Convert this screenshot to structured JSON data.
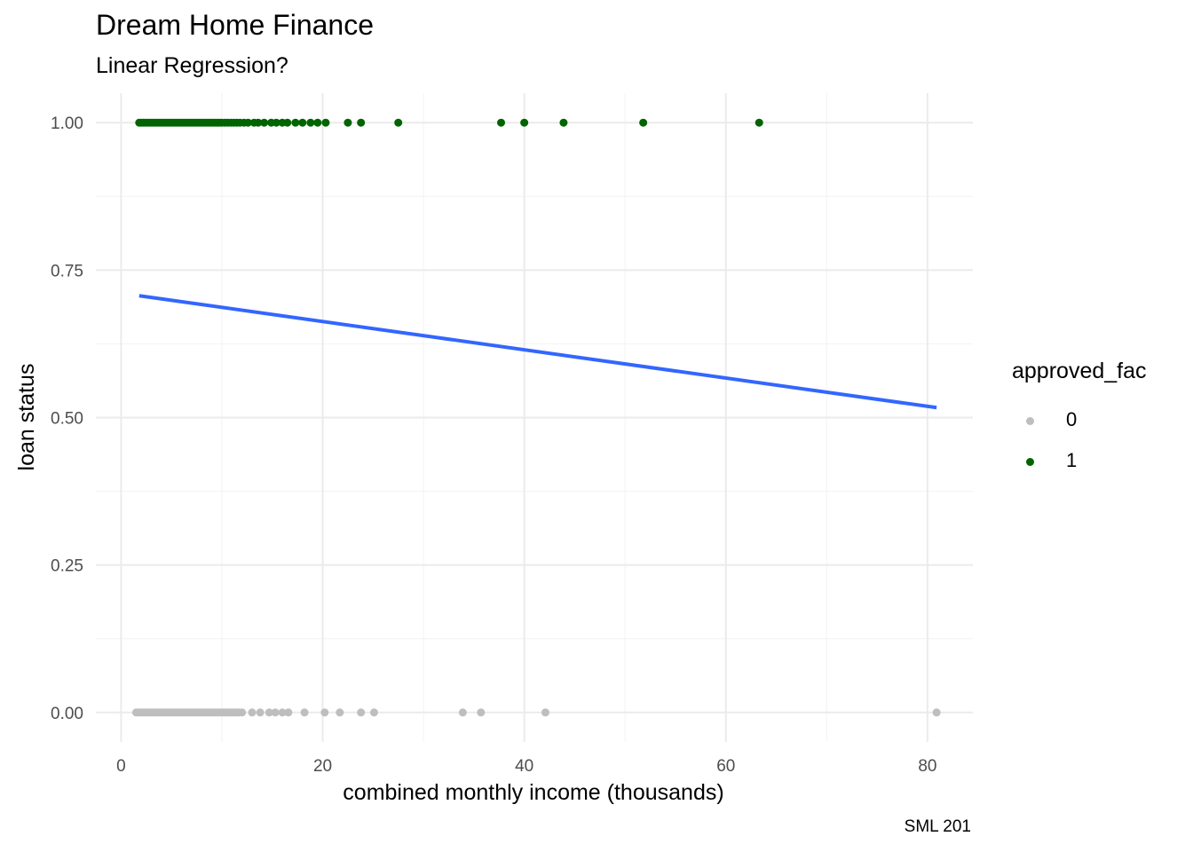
{
  "chart_data": {
    "type": "scatter",
    "title": "Dream Home Finance",
    "subtitle": "Linear Regression?",
    "caption": "SML 201",
    "xlabel": "combined monthly income (thousands)",
    "ylabel": "loan status",
    "xlim": [
      -2.5,
      84.5
    ],
    "ylim": [
      -0.05,
      1.05
    ],
    "x_ticks": [
      0,
      20,
      40,
      60,
      80
    ],
    "x_tick_labels": [
      "0",
      "20",
      "40",
      "60",
      "80"
    ],
    "y_ticks": [
      0,
      0.25,
      0.5,
      0.75,
      1.0
    ],
    "y_tick_labels": [
      "0.00",
      "0.25",
      "0.50",
      "0.75",
      "1.00"
    ],
    "grid": true,
    "legend": {
      "title": "approved_fac",
      "placement": "right",
      "entries": [
        {
          "label": "0",
          "color": "#bebebe"
        },
        {
          "label": "1",
          "color": "#006400"
        }
      ]
    },
    "series": [
      {
        "name": "0",
        "color": "#bebebe",
        "x": [
          1.5,
          1.7,
          1.9,
          2.1,
          2.3,
          2.5,
          2.7,
          2.9,
          3.1,
          3.3,
          3.5,
          3.7,
          3.9,
          4.1,
          4.3,
          4.5,
          4.7,
          4.9,
          5.1,
          5.3,
          5.5,
          5.7,
          5.9,
          6.1,
          6.3,
          6.5,
          6.7,
          6.9,
          7.1,
          7.3,
          7.5,
          7.7,
          7.9,
          8.1,
          8.3,
          8.5,
          8.7,
          8.9,
          9.1,
          9.3,
          9.5,
          9.7,
          9.9,
          10.1,
          10.3,
          10.5,
          10.7,
          10.9,
          11.1,
          11.3,
          11.5,
          11.7,
          12.0,
          13.0,
          13.8,
          14.7,
          15.3,
          16.0,
          16.6,
          18.2,
          20.2,
          21.7,
          23.8,
          25.1,
          33.9,
          35.7,
          42.1,
          80.9
        ],
        "y": [
          0,
          0,
          0,
          0,
          0,
          0,
          0,
          0,
          0,
          0,
          0,
          0,
          0,
          0,
          0,
          0,
          0,
          0,
          0,
          0,
          0,
          0,
          0,
          0,
          0,
          0,
          0,
          0,
          0,
          0,
          0,
          0,
          0,
          0,
          0,
          0,
          0,
          0,
          0,
          0,
          0,
          0,
          0,
          0,
          0,
          0,
          0,
          0,
          0,
          0,
          0,
          0,
          0,
          0,
          0,
          0,
          0,
          0,
          0,
          0,
          0,
          0,
          0,
          0,
          0,
          0,
          0,
          0
        ]
      },
      {
        "name": "1",
        "color": "#006400",
        "x": [
          1.8,
          2.0,
          2.2,
          2.4,
          2.6,
          2.8,
          3.0,
          3.2,
          3.4,
          3.6,
          3.8,
          4.0,
          4.2,
          4.4,
          4.6,
          4.8,
          5.0,
          5.2,
          5.4,
          5.6,
          5.8,
          6.0,
          6.2,
          6.4,
          6.6,
          6.8,
          7.0,
          7.2,
          7.4,
          7.6,
          7.8,
          8.0,
          8.2,
          8.4,
          8.6,
          8.8,
          9.0,
          9.2,
          9.4,
          9.6,
          9.8,
          10.0,
          10.3,
          10.6,
          10.9,
          11.2,
          11.5,
          11.8,
          12.2,
          12.6,
          13.2,
          13.6,
          14.2,
          14.9,
          15.4,
          16.0,
          16.5,
          17.3,
          18.0,
          18.8,
          19.5,
          20.3,
          22.5,
          23.8,
          27.5,
          37.7,
          40.0,
          43.9,
          51.8,
          63.3
        ],
        "y": [
          1,
          1,
          1,
          1,
          1,
          1,
          1,
          1,
          1,
          1,
          1,
          1,
          1,
          1,
          1,
          1,
          1,
          1,
          1,
          1,
          1,
          1,
          1,
          1,
          1,
          1,
          1,
          1,
          1,
          1,
          1,
          1,
          1,
          1,
          1,
          1,
          1,
          1,
          1,
          1,
          1,
          1,
          1,
          1,
          1,
          1,
          1,
          1,
          1,
          1,
          1,
          1,
          1,
          1,
          1,
          1,
          1,
          1,
          1,
          1,
          1,
          1,
          1,
          1,
          1,
          1,
          1,
          1,
          1,
          1
        ]
      }
    ],
    "fit_line": {
      "type": "linear regression",
      "color": "#3366ff",
      "x": [
        1.8,
        80.9
      ],
      "y": [
        0.7065,
        0.5169
      ]
    }
  }
}
